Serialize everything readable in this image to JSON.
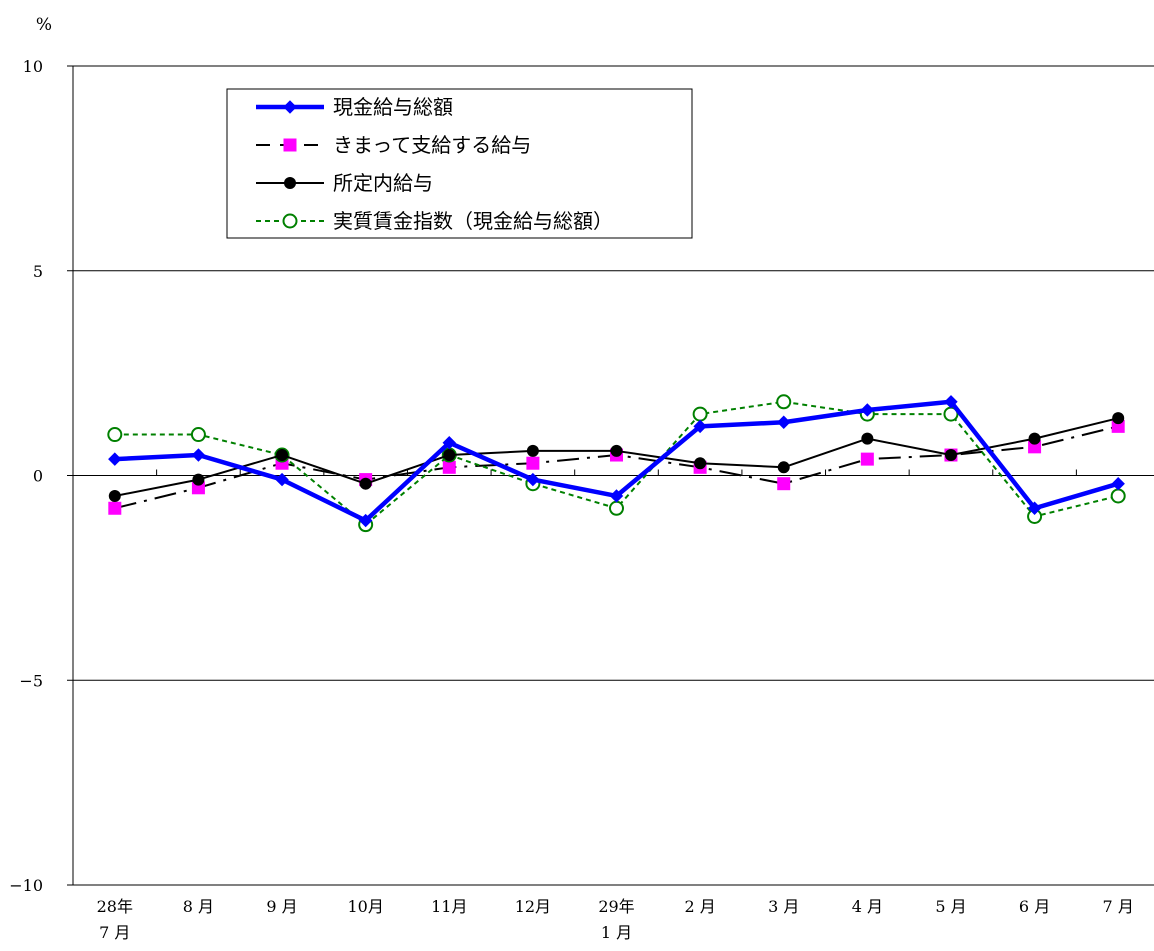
{
  "chart_data": {
    "type": "line",
    "y_unit": "%",
    "ylim": [
      -10,
      10
    ],
    "yticks": [
      "10",
      "5",
      "0",
      "−5",
      "−10"
    ],
    "grid": "horizontal",
    "legend_position": "top-left",
    "categories": [
      [
        "28年",
        "7 月"
      ],
      [
        "8 月"
      ],
      [
        "9 月"
      ],
      [
        "10月"
      ],
      [
        "11月"
      ],
      [
        "12月"
      ],
      [
        "29年",
        "1 月"
      ],
      [
        "2 月"
      ],
      [
        "3 月"
      ],
      [
        "4 月"
      ],
      [
        "5 月"
      ],
      [
        "6 月"
      ],
      [
        "7 月"
      ]
    ],
    "series": [
      {
        "name": "現金給与総額",
        "color": "#0000ff",
        "marker": "diamond",
        "line": "solid-thick",
        "values": [
          0.4,
          0.5,
          -0.1,
          -1.1,
          0.8,
          -0.1,
          -0.5,
          1.2,
          1.3,
          1.6,
          1.8,
          -0.8,
          -0.2
        ]
      },
      {
        "name": "きまって支給する給与",
        "color": "#ff00ff",
        "marker": "square",
        "line": "dash-dot",
        "values": [
          -0.8,
          -0.3,
          0.3,
          -0.1,
          0.2,
          0.3,
          0.5,
          0.2,
          -0.2,
          0.4,
          0.5,
          0.7,
          1.2
        ]
      },
      {
        "name": "所定内給与",
        "color": "#000000",
        "marker": "circle",
        "line": "solid",
        "values": [
          -0.5,
          -0.1,
          0.5,
          -0.2,
          0.5,
          0.6,
          0.6,
          0.3,
          0.2,
          0.9,
          0.5,
          0.9,
          1.4
        ]
      },
      {
        "name": "実質賃金指数（現金給与総額）",
        "color": "#008000",
        "marker": "open-circle",
        "line": "dashed",
        "values": [
          1.0,
          1.0,
          0.5,
          -1.2,
          0.5,
          -0.2,
          -0.8,
          1.5,
          1.8,
          1.5,
          1.5,
          -1.0,
          -0.5
        ]
      }
    ]
  }
}
